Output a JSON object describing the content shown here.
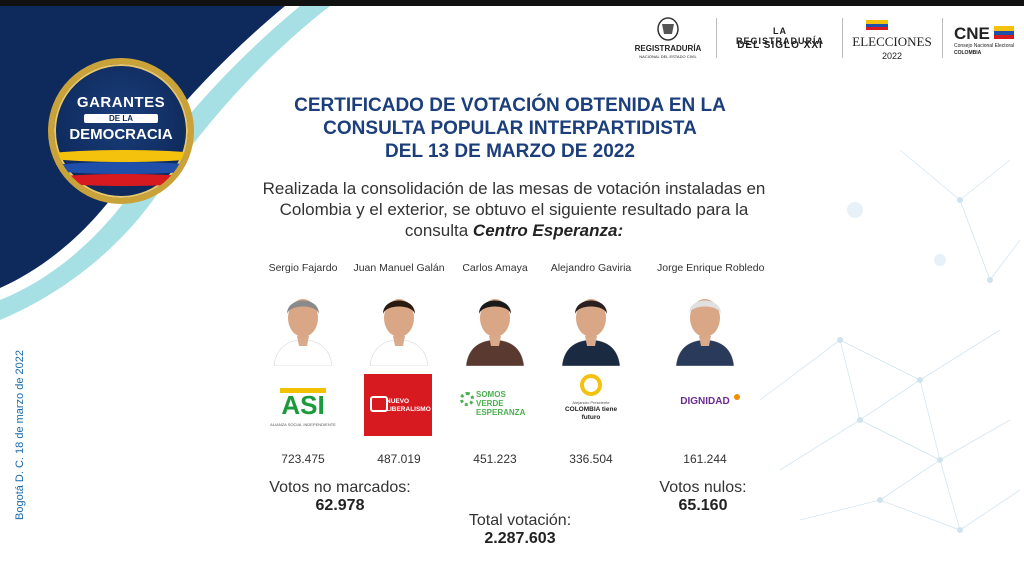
{
  "badge": {
    "line1": "GARANTES",
    "line2": "DE LA",
    "line3": "DEMOCRACIA"
  },
  "logos": {
    "registraduria": {
      "line1": "REGISTRADURÍA",
      "line2": "NACIONAL DEL ESTADO CIVIL"
    },
    "siglo": {
      "line1": "LA REGISTRADURÍA",
      "line2": "DEL SIGLO XXI"
    },
    "elecciones": {
      "line1": "ELECCIONES",
      "line2": "2022"
    },
    "cne": {
      "line1": "CNE",
      "line2": "Consejo Nacional Electoral",
      "line3": "COLOMBIA"
    }
  },
  "title": {
    "line1": "CERTIFICADO DE VOTACIÓN OBTENIDA EN LA",
    "line2": "CONSULTA POPULAR INTERPARTIDISTA",
    "line3": "DEL 13 DE MARZO DE 2022"
  },
  "intro": {
    "line1": "Realizada la consolidación de las mesas de votación instaladas en",
    "line2": "Colombia y el exterior, se obtuvo el siguiente resultado para la",
    "line3_prefix": "consulta",
    "line3_bold": "Centro Esperanza:"
  },
  "candidates": [
    {
      "name": "Sergio Fajardo",
      "party": "ASI",
      "party_sub": "ALIANZA SOCIAL INDEPENDIENTE",
      "votes": "723.475",
      "color": "#f2c200"
    },
    {
      "name": "Juan Manuel Galán",
      "party": "NUEVO LIBERALISMO",
      "votes": "487.019",
      "color": "#d71920"
    },
    {
      "name": "Carlos Amaya",
      "party": "SOMOS VERDE ESPERANZA",
      "votes": "451.223",
      "color": "#4caf50"
    },
    {
      "name": "Alejandro Gaviria",
      "party": "COLOMBIA tiene futuro",
      "party_sub": "Alejandro Presidente",
      "votes": "336.504",
      "color": "#f4c20d"
    },
    {
      "name": "Jorge Enrique Robledo",
      "party": "DIGNIDAD",
      "votes": "161.244",
      "color": "#6a2c8f"
    }
  ],
  "stats": {
    "no_marcados": {
      "label": "Votos no marcados:",
      "value": "62.978"
    },
    "nulos": {
      "label": "Votos nulos:",
      "value": "65.160"
    },
    "total": {
      "label": "Total votación:",
      "value": "2.287.603"
    }
  },
  "side_date": "Bogotá D. C.  18 de marzo de 2022",
  "colors": {
    "navy": "#0e2a5c",
    "title_blue": "#1c3f7c",
    "teal": "#5cc6d0",
    "gold": "#c9a23a"
  }
}
